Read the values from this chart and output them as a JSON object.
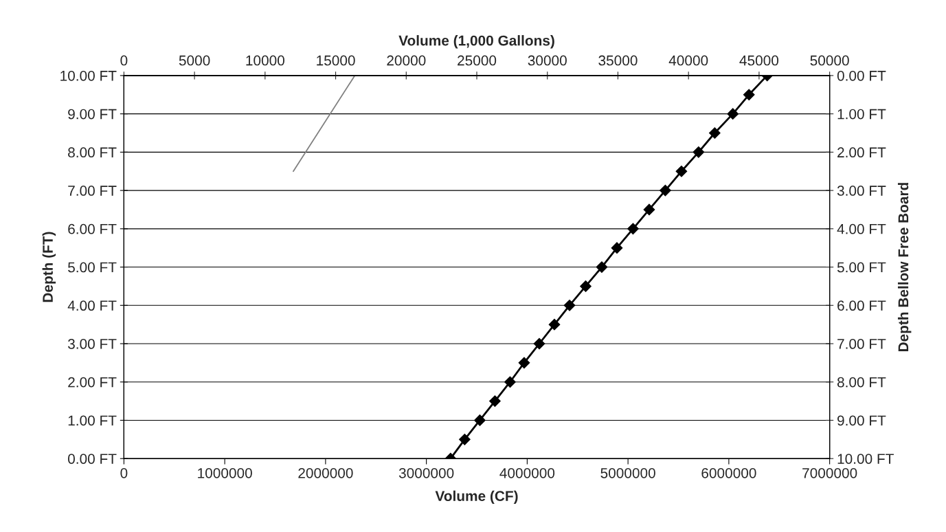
{
  "chart_data": {
    "type": "line",
    "xlabel": "Volume (CF)",
    "ylabel": "Depth (FT)",
    "y2label": "Depth Bellow Free Board",
    "x2label": "Volume (1,000 Gallons)",
    "xlim": [
      0,
      7000000
    ],
    "xticks": [
      0,
      1000000,
      2000000,
      3000000,
      4000000,
      5000000,
      6000000,
      7000000
    ],
    "x2lim": [
      0,
      50000
    ],
    "x2ticks": [
      0,
      5000,
      10000,
      15000,
      20000,
      25000,
      30000,
      35000,
      40000,
      45000,
      50000
    ],
    "ylim": [
      0,
      10
    ],
    "yticks": [
      {
        "value": 0,
        "label": "0.00 FT"
      },
      {
        "value": 1,
        "label": "1.00 FT"
      },
      {
        "value": 2,
        "label": "2.00 FT"
      },
      {
        "value": 3,
        "label": "3.00 FT"
      },
      {
        "value": 4,
        "label": "4.00 FT"
      },
      {
        "value": 5,
        "label": "5.00 FT"
      },
      {
        "value": 6,
        "label": "6.00 FT"
      },
      {
        "value": 7,
        "label": "7.00 FT"
      },
      {
        "value": 8,
        "label": "8.00 FT"
      },
      {
        "value": 9,
        "label": "9.00 FT"
      },
      {
        "value": 10,
        "label": "10.00 FT"
      }
    ],
    "y2lim": [
      10,
      0
    ],
    "y2ticks": [
      {
        "value": 0,
        "label": "0.00 FT"
      },
      {
        "value": 1,
        "label": "1.00 FT"
      },
      {
        "value": 2,
        "label": "2.00 FT"
      },
      {
        "value": 3,
        "label": "3.00 FT"
      },
      {
        "value": 4,
        "label": "4.00 FT"
      },
      {
        "value": 5,
        "label": "5.00 FT"
      },
      {
        "value": 6,
        "label": "6.00 FT"
      },
      {
        "value": 7,
        "label": "7.00 FT"
      },
      {
        "value": 8,
        "label": "8.00 FT"
      },
      {
        "value": 9,
        "label": "9.00 FT"
      },
      {
        "value": 10,
        "label": "10.00 FT"
      }
    ],
    "grid": "y",
    "legend": false,
    "series": [
      {
        "color": "#000000",
        "marker": "diamond",
        "x": [
          3240000,
          3380000,
          3530000,
          3680000,
          3830000,
          3970000,
          4120000,
          4270000,
          4420000,
          4580000,
          4740000,
          4890000,
          5050000,
          5210000,
          5370000,
          5530000,
          5700000,
          5860000,
          6040000,
          6200000,
          6380000
        ],
        "values": [
          0,
          0.5,
          1,
          1.5,
          2,
          2.5,
          3,
          3.5,
          4,
          4.5,
          5,
          5.5,
          6,
          6.5,
          7,
          7.5,
          8,
          8.5,
          9,
          9.5,
          10
        ]
      },
      {
        "color": "#808080",
        "marker": "none",
        "x": [
          1680000,
          2290000
        ],
        "values": [
          7.5,
          10
        ]
      }
    ]
  }
}
